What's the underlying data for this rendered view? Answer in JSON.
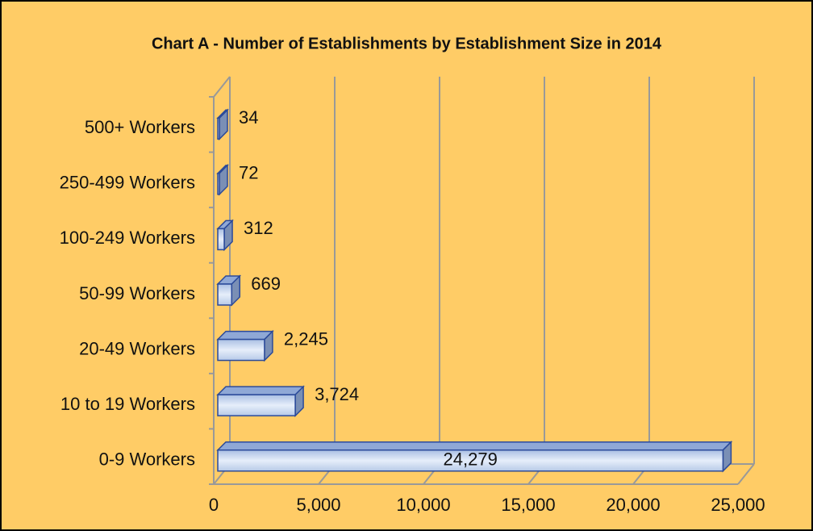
{
  "chart_data": {
    "type": "bar",
    "orientation": "horizontal",
    "title": "Chart A - Number of Establishments by Establishment Size in 2014",
    "categories": [
      "500+ Workers",
      "250-499 Workers",
      "100-249 Workers",
      "50-99 Workers",
      "20-49 Workers",
      "10 to 19 Workers",
      "0-9 Workers"
    ],
    "values": [
      34,
      72,
      312,
      669,
      2245,
      3724,
      24279
    ],
    "value_labels": [
      "34",
      "72",
      "312",
      "669",
      "2,245",
      "3,724",
      "24,279"
    ],
    "color": "#c6d6ee",
    "xlim": [
      0,
      25000
    ],
    "xticks": [
      0,
      {
        "value": 5000,
        "label": "5,000"
      },
      {
        "value": 10000,
        "label": "10,000"
      },
      {
        "value": 15000,
        "label": "15,000"
      },
      {
        "value": 20000,
        "label": "20,000"
      },
      {
        "value": 25000,
        "label": "25,000"
      }
    ],
    "grid": true
  }
}
